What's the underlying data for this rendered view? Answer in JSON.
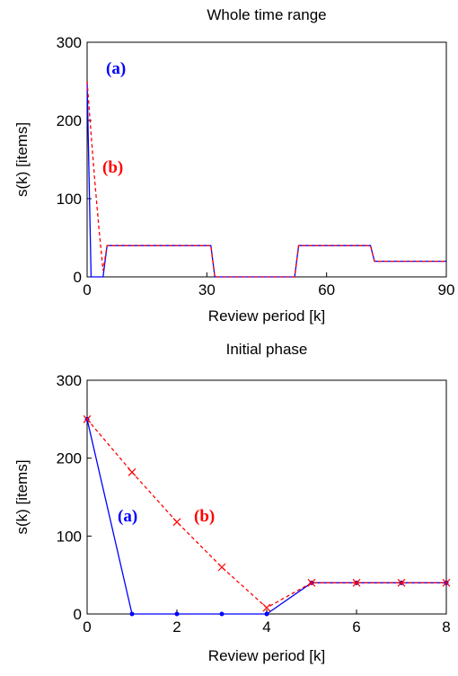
{
  "chart_data": [
    {
      "type": "line",
      "title": "Whole time range",
      "xlabel": "Review period [k]",
      "ylabel": "s(k) [items]",
      "x": [
        0,
        1,
        2,
        3,
        4,
        5,
        31,
        32,
        52,
        53,
        71,
        72,
        90
      ],
      "series": [
        {
          "name": "(a)",
          "color": "#0000ff",
          "dash": false,
          "marker": null,
          "values": [
            250,
            0,
            0,
            0,
            0,
            40,
            40,
            0,
            0,
            40,
            40,
            20,
            20
          ]
        },
        {
          "name": "(b)",
          "color": "#ff0000",
          "dash": true,
          "marker": null,
          "values": [
            250,
            182,
            118,
            60,
            8,
            40,
            40,
            0,
            0,
            40,
            40,
            20,
            20
          ]
        }
      ],
      "xlim": [
        0,
        90
      ],
      "xticks": [
        0,
        30,
        60,
        90
      ],
      "ylim": [
        0,
        300
      ],
      "yticks": [
        0,
        100,
        200,
        300
      ],
      "grid": false
    },
    {
      "type": "line",
      "title": "Initial phase",
      "xlabel": "Review period [k]",
      "ylabel": "s(k) [items]",
      "x": [
        0,
        1,
        2,
        3,
        4,
        5,
        6,
        7,
        8
      ],
      "series": [
        {
          "name": "(a)",
          "color": "#0000ff",
          "dash": false,
          "marker": "dot",
          "values": [
            250,
            0,
            0,
            0,
            0,
            40,
            40,
            40,
            40
          ]
        },
        {
          "name": "(b)",
          "color": "#ff0000",
          "dash": true,
          "marker": "x",
          "values": [
            250,
            182,
            118,
            60,
            8,
            40,
            40,
            40,
            40
          ]
        }
      ],
      "xlim": [
        0,
        8
      ],
      "xticks": [
        0,
        2,
        4,
        6,
        8
      ],
      "ylim": [
        0,
        300
      ],
      "yticks": [
        0,
        100,
        200,
        300
      ],
      "grid": false
    }
  ]
}
